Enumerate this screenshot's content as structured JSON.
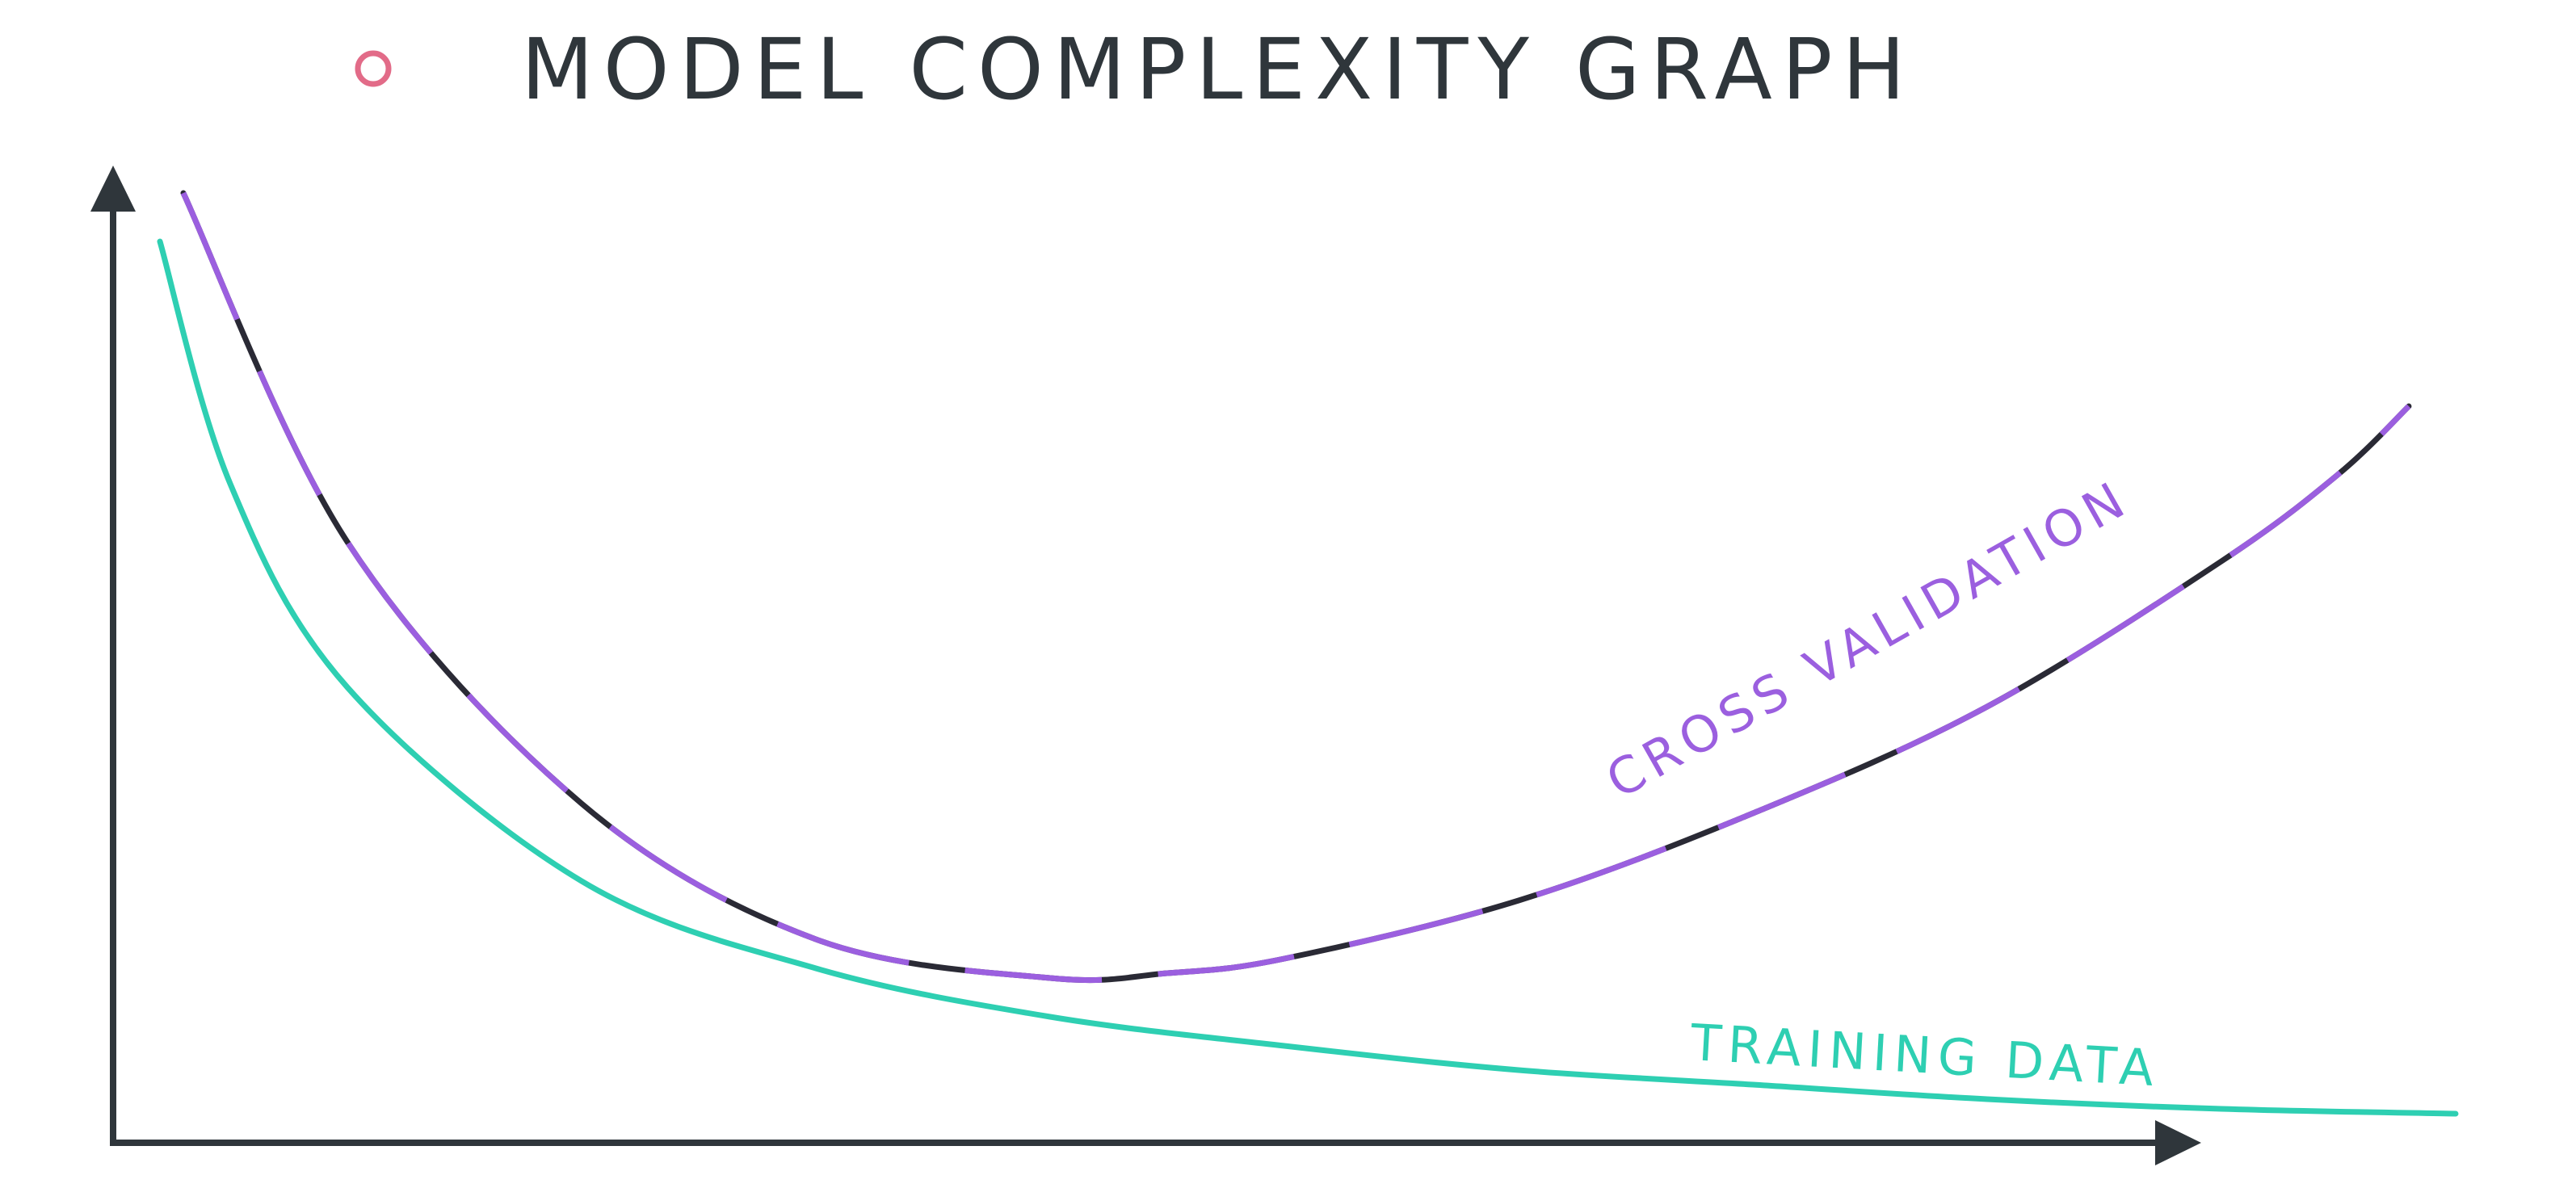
{
  "title": "MODEL COMPLEXITY GRAPH",
  "colors": {
    "bullet": "#e26b88",
    "axis": "#2f363b",
    "training": "#2ecfb2",
    "cross_validation": "#9b5fdf",
    "cross_validation_under": "#2a2a35"
  },
  "chart_data": {
    "type": "line",
    "title": "MODEL COMPLEXITY GRAPH",
    "xlabel": "",
    "ylabel": "",
    "grid": false,
    "axis_ticks": false,
    "series": [
      {
        "name": "CROSS VALIDATION",
        "color": "#9b5fdf",
        "x": [
          0.03,
          0.1,
          0.2,
          0.3,
          0.4,
          0.45,
          0.5,
          0.6,
          0.7,
          0.8,
          0.9,
          0.95,
          0.98
        ],
        "y": [
          0.98,
          0.62,
          0.35,
          0.21,
          0.17,
          0.175,
          0.19,
          0.25,
          0.34,
          0.45,
          0.6,
          0.69,
          0.76
        ]
      },
      {
        "name": "TRAINING DATA",
        "color": "#2ecfb2",
        "x": [
          0.02,
          0.05,
          0.1,
          0.2,
          0.3,
          0.4,
          0.5,
          0.6,
          0.7,
          0.8,
          0.9,
          1.0
        ],
        "y": [
          0.93,
          0.68,
          0.47,
          0.27,
          0.18,
          0.13,
          0.1,
          0.075,
          0.06,
          0.045,
          0.035,
          0.03
        ]
      }
    ]
  }
}
